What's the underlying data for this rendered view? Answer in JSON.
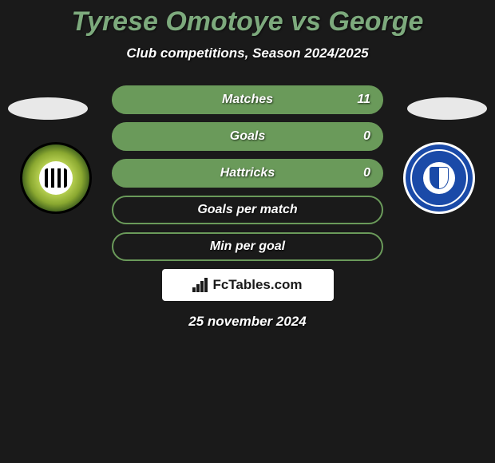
{
  "title": "Tyrese Omotoye vs George",
  "title_color": "#7daa7d",
  "subtitle": "Club competitions, Season 2024/2025",
  "background_color": "#1a1a1a",
  "stat_border_color": "#6a9a5a",
  "stat_fill_color": "#6a9a5a",
  "stats": [
    {
      "label": "Matches",
      "value": "11",
      "filled": true
    },
    {
      "label": "Goals",
      "value": "0",
      "filled": true
    },
    {
      "label": "Hattricks",
      "value": "0",
      "filled": true
    },
    {
      "label": "Goals per match",
      "value": "",
      "filled": false
    },
    {
      "label": "Min per goal",
      "value": "",
      "filled": false
    }
  ],
  "left_club": {
    "name": "Forest Green Rovers",
    "primary_color": "#8aa830",
    "secondary_color": "#000000",
    "inner_color": "#ffffff"
  },
  "right_club": {
    "name": "FC Halifax Town",
    "primary_color": "#1a4aa8",
    "secondary_color": "#ffffff"
  },
  "brand": "FcTables.com",
  "date": "25 november 2024",
  "avatar_color": "#e8e8e8",
  "font_style": "italic"
}
